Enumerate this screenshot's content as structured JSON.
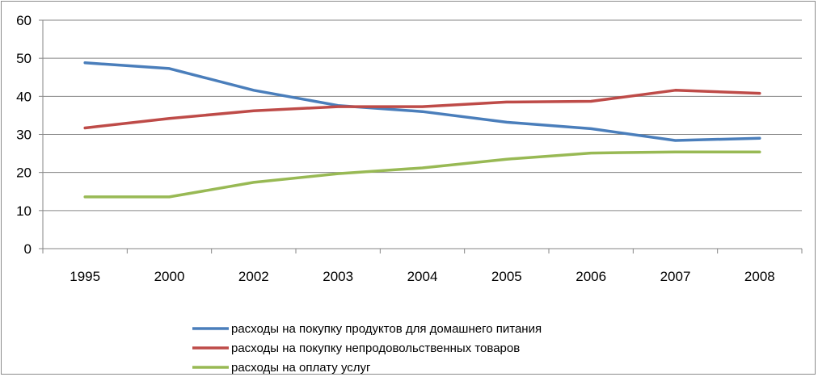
{
  "chart_data": {
    "type": "line",
    "title": "",
    "xlabel": "",
    "ylabel": "",
    "categories": [
      "1995",
      "2000",
      "2002",
      "2003",
      "2004",
      "2005",
      "2006",
      "2007",
      "2008"
    ],
    "ylim": [
      0,
      60
    ],
    "yticks": [
      0,
      10,
      20,
      30,
      40,
      50,
      60
    ],
    "grid": "horizontal",
    "legend_position": "bottom",
    "series": [
      {
        "name": "расходы на покупку продуктов для домашнего питания",
        "color": "#4a7ebb",
        "values": [
          48.8,
          47.3,
          41.6,
          37.6,
          36.0,
          33.2,
          31.5,
          28.4,
          29.0
        ]
      },
      {
        "name": "расходы на покупку непродовольственных товаров",
        "color": "#be4b48",
        "values": [
          31.7,
          34.2,
          36.2,
          37.3,
          37.3,
          38.5,
          38.7,
          41.6,
          40.8
        ]
      },
      {
        "name": "расходы на оплату услуг",
        "color": "#98b954",
        "values": [
          13.6,
          13.6,
          17.4,
          19.7,
          21.2,
          23.5,
          25.1,
          25.4,
          25.4
        ]
      }
    ]
  }
}
